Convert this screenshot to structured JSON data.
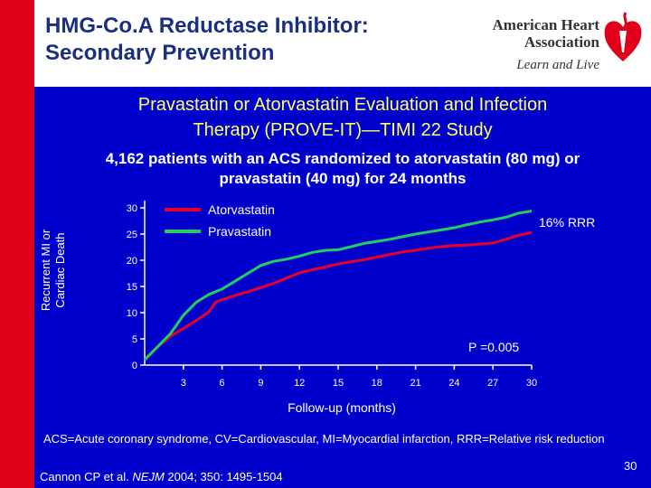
{
  "slide": {
    "title_line1": "HMG-Co.A Reductase Inhibitor:",
    "title_line2": "Secondary Prevention",
    "subtitle_line1": "Pravastatin or Atorvastatin Evaluation and Infection",
    "subtitle_line2": "Therapy (PROVE-IT)—TIMI 22 Study",
    "description_line1": "4,162 patients with an ACS randomized to atorvastatin (80 mg) or",
    "description_line2": "pravastatin (40 mg) for 24 months",
    "abbreviations": "ACS=Acute coronary syndrome, CV=Cardiovascular, MI=Myocardial infarction, RRR=Relative risk reduction",
    "citation_prefix": "Cannon CP et al. ",
    "citation_journal": "NEJM",
    "citation_rest": " 2004; 350: 1495-1504",
    "page_number": "30"
  },
  "logo": {
    "line1": "American Heart",
    "line2": "Association",
    "tagline": "Learn and Live",
    "icon": "heart-torch-icon"
  },
  "colors": {
    "background": "#0000cc",
    "accent_bar": "#e0001a",
    "title": "#1a2f80",
    "subtitle": "#ffff66",
    "atorvastatin": "#e8002a",
    "pravastatin": "#22d060"
  },
  "chart_data": {
    "type": "line",
    "xlabel": "Follow-up (months)",
    "ylabel_line1": "Recurrent MI or",
    "ylabel_line2": "Cardiac Death",
    "xlim": [
      0,
      30
    ],
    "ylim": [
      0,
      30
    ],
    "x_ticks": [
      "3",
      "6",
      "9",
      "12",
      "15",
      "18",
      "21",
      "24",
      "27",
      "30"
    ],
    "y_ticks": [
      "0",
      "5",
      "10",
      "15",
      "20",
      "25",
      "30"
    ],
    "series": [
      {
        "name": "Atorvastatin",
        "color": "#e8002a",
        "x": [
          0,
          1,
          2,
          3,
          4,
          5,
          5.5,
          6,
          7,
          8,
          9,
          10,
          11,
          12,
          13,
          14,
          15,
          16,
          17,
          18,
          19,
          20,
          21,
          22,
          23,
          24,
          25,
          26,
          27,
          28,
          29,
          30
        ],
        "y": [
          1,
          3.5,
          5.5,
          7,
          8.5,
          10.2,
          12,
          12.5,
          13.3,
          14,
          14.8,
          15.6,
          16.6,
          17.6,
          18.2,
          18.7,
          19.3,
          19.7,
          20.1,
          20.6,
          21.1,
          21.6,
          21.9,
          22.3,
          22.6,
          22.8,
          22.9,
          23.1,
          23.3,
          24,
          24.8,
          25.3
        ]
      },
      {
        "name": "Pravastatin",
        "color": "#22d060",
        "x": [
          0,
          1,
          2,
          3,
          4,
          5,
          6,
          7,
          8,
          9,
          10,
          11,
          12,
          13,
          14,
          15,
          16,
          17,
          18,
          19,
          20,
          21,
          22,
          23,
          24,
          25,
          26,
          27,
          28,
          29,
          30
        ],
        "y": [
          1,
          3.5,
          6,
          9.5,
          12,
          13.5,
          14.5,
          16,
          17.5,
          19,
          19.8,
          20.2,
          20.8,
          21.5,
          21.9,
          22,
          22.6,
          23.2,
          23.6,
          24,
          24.5,
          25,
          25.4,
          25.8,
          26.2,
          26.8,
          27.3,
          27.7,
          28.2,
          29,
          29.4
        ]
      }
    ],
    "legend_position": "top-center",
    "annotations": [
      {
        "name": "rrr",
        "text": "16% RRR"
      },
      {
        "name": "p-value",
        "text": "P =0.005"
      }
    ],
    "grid": false
  }
}
